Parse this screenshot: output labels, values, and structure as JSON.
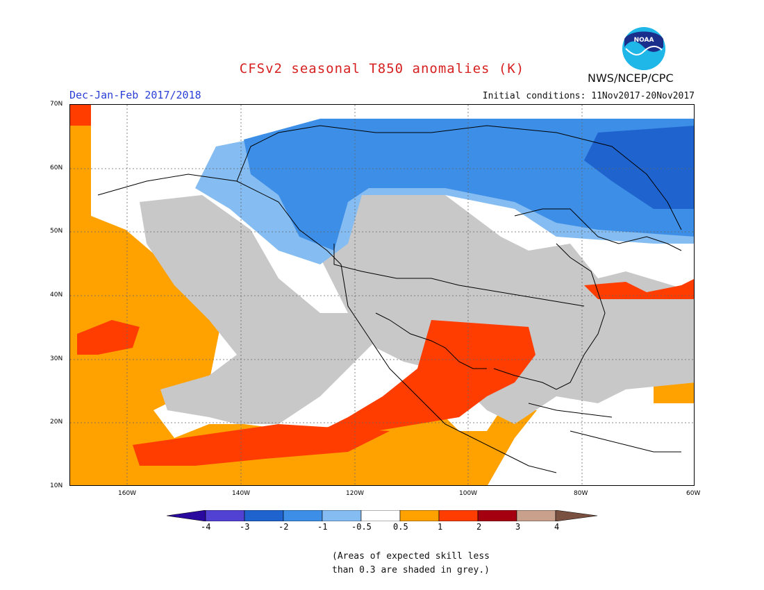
{
  "header": {
    "title": "CFSv2 seasonal T850 anomalies (K)",
    "season": "Dec-Jan-Feb 2017/2018",
    "initial_conditions": "Initial conditions: 11Nov2017-20Nov2017",
    "agency": "NWS/NCEP/CPC",
    "logo_text": "NOAA"
  },
  "map": {
    "projection": "lat-lon",
    "lon_range": [
      -170,
      -60
    ],
    "lat_range": [
      10,
      70
    ],
    "lat_ticks": [
      "70N",
      "60N",
      "50N",
      "40N",
      "30N",
      "20N",
      "10N"
    ],
    "lon_ticks": [
      "160W",
      "140W",
      "120W",
      "100W",
      "80W",
      "60W"
    ],
    "grid": true,
    "colors": {
      "lt_minus4": "#2a0a9e",
      "m4_m3": "#5242d4",
      "m3_m2": "#1f63cf",
      "m2_m1": "#3d8ee6",
      "m1_m05": "#85bdf2",
      "neutral": "#ffffff",
      "p05_p1": "#ffa200",
      "p1_p2": "#ff3d00",
      "p2_p3": "#a40010",
      "p3_p4": "#c8a08c",
      "gt_4": "#7a5040",
      "low_skill": "#c8c8c8"
    }
  },
  "colorbar": {
    "labels": [
      "-4",
      "-3",
      "-2",
      "-1",
      "-0.5",
      "0.5",
      "1",
      "2",
      "3",
      "4"
    ]
  },
  "footnote": {
    "line1": "(Areas of expected skill less",
    "line2": "than 0.3 are shaded in grey.)"
  }
}
